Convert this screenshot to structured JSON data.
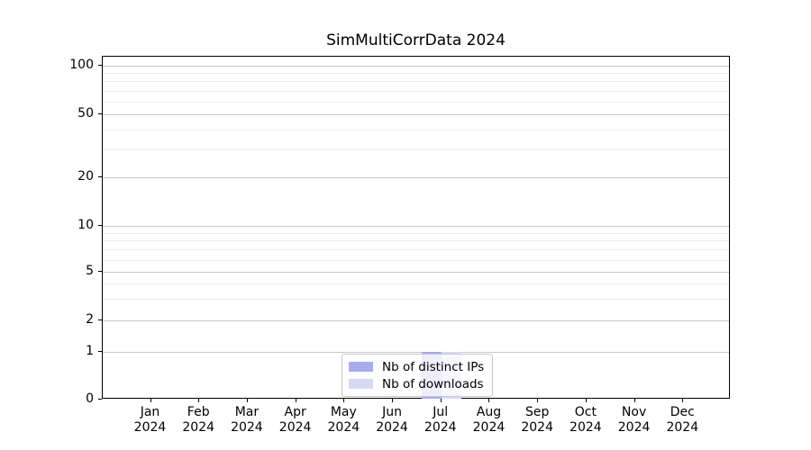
{
  "chart_data": {
    "type": "bar",
    "title": "SimMultiCorrData 2024",
    "year": "2024",
    "months": [
      "Jan",
      "Feb",
      "Mar",
      "Apr",
      "May",
      "Jun",
      "Jul",
      "Aug",
      "Sep",
      "Oct",
      "Nov",
      "Dec"
    ],
    "categories": [
      "Jan 2024",
      "Feb 2024",
      "Mar 2024",
      "Apr 2024",
      "May 2024",
      "Jun 2024",
      "Jul 2024",
      "Aug 2024",
      "Sep 2024",
      "Oct 2024",
      "Nov 2024",
      "Dec 2024"
    ],
    "series": [
      {
        "name": "Nb of distinct IPs",
        "color": "#aaaaee",
        "values": [
          0,
          0,
          0,
          0,
          0,
          0,
          1,
          0,
          0,
          0,
          0,
          0
        ]
      },
      {
        "name": "Nb of downloads",
        "color": "#d8d8f7",
        "values": [
          0,
          0,
          0,
          0,
          0,
          0,
          1,
          0,
          0,
          0,
          0,
          0
        ]
      }
    ],
    "yscale": "symlog",
    "y_major_ticks": [
      0,
      1,
      2,
      5,
      10,
      20,
      50,
      100
    ],
    "y_minor_ticks": [
      3,
      4,
      6,
      7,
      8,
      9,
      30,
      40,
      60,
      70,
      80,
      90
    ],
    "ylim": [
      0,
      115
    ],
    "grid": "both",
    "legend_position": "lower center"
  }
}
